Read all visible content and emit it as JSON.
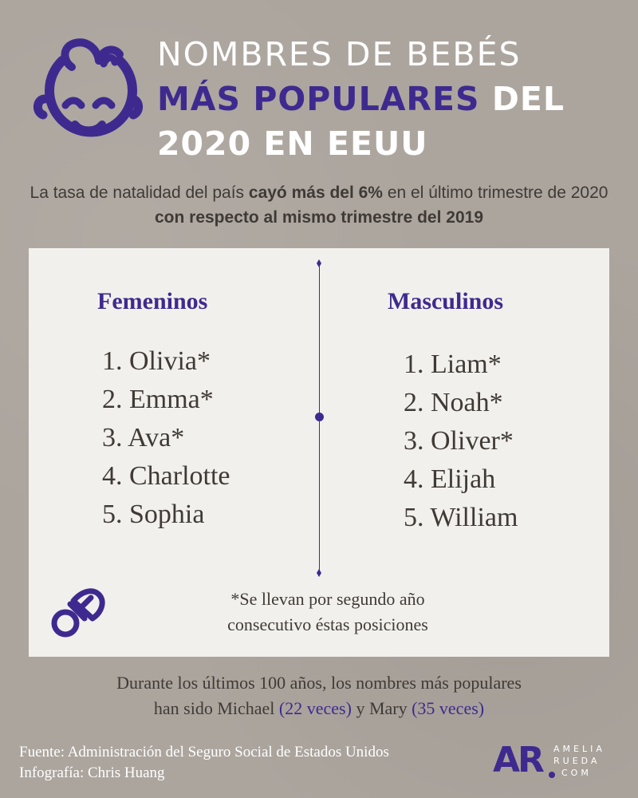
{
  "title": {
    "line1": "NOMBRES DE BEBÉS",
    "line2_accent": "MÁS POPULARES",
    "line2_rest": " DEL",
    "line3": "2020 EN EEUU"
  },
  "intro": {
    "part1": "La tasa de natalidad del país ",
    "bold1": "cayó más del 6%",
    "part2": " en el último trimestre de 2020 ",
    "bold2": "con respecto al mismo trimestre del 2019"
  },
  "femeninos": {
    "heading": "Femeninos",
    "names": [
      "1. Olivia*",
      "2. Emma*",
      "3. Ava*",
      "4. Charlotte",
      "5. Sophia"
    ]
  },
  "masculinos": {
    "heading": "Masculinos",
    "names": [
      "1. Liam*",
      "2. Noah*",
      "3. Oliver*",
      "4. Elijah",
      "5. William"
    ]
  },
  "note": {
    "line1": "*Se llevan por segundo año",
    "line2": "consecutivo éstas posiciones"
  },
  "fact": {
    "part1": "Durante los últimos 100 años, los nombres más populares",
    "part2": "han sido Michael ",
    "michael_count": "(22 veces)",
    "part3": " y Mary ",
    "mary_count": "(35 veces)"
  },
  "source": {
    "line1": "Fuente: Administración del Seguro Social de Estados Unidos",
    "line2": "Infografía: Chris Huang"
  },
  "logo": {
    "mark": "AR",
    "line1": "AMELIA",
    "line2": "RUEDA",
    "line3": "COM"
  },
  "colors": {
    "background": "#ACA59E",
    "accent": "#3E2A8F",
    "card": "#F2F0ED",
    "text": "#3F3A35"
  },
  "icons": [
    "baby-face-icon",
    "pacifier-icon"
  ]
}
